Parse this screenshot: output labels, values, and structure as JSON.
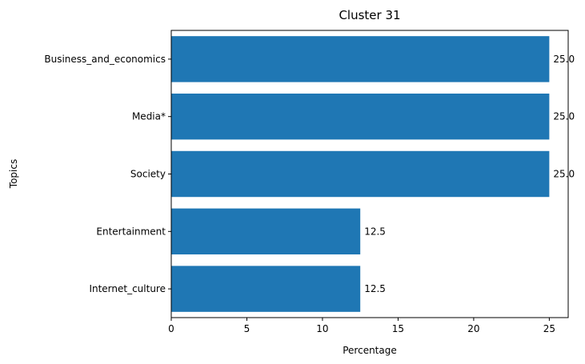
{
  "chart_data": {
    "type": "bar",
    "orientation": "horizontal",
    "title": "Cluster 31",
    "xlabel": "Percentage",
    "ylabel": "Topics",
    "categories": [
      "Business_and_economics",
      "Media*",
      "Society",
      "Entertainment",
      "Internet_culture"
    ],
    "values": [
      25.0,
      25.0,
      25.0,
      12.5,
      12.5
    ],
    "data_labels": [
      "25.0",
      "25.0",
      "25.0",
      "12.5",
      "12.5"
    ],
    "xlim": [
      0,
      26.25
    ],
    "xticks": [
      0,
      5,
      10,
      15,
      20,
      25
    ],
    "grid": false,
    "bar_color": "#1f77b4"
  }
}
